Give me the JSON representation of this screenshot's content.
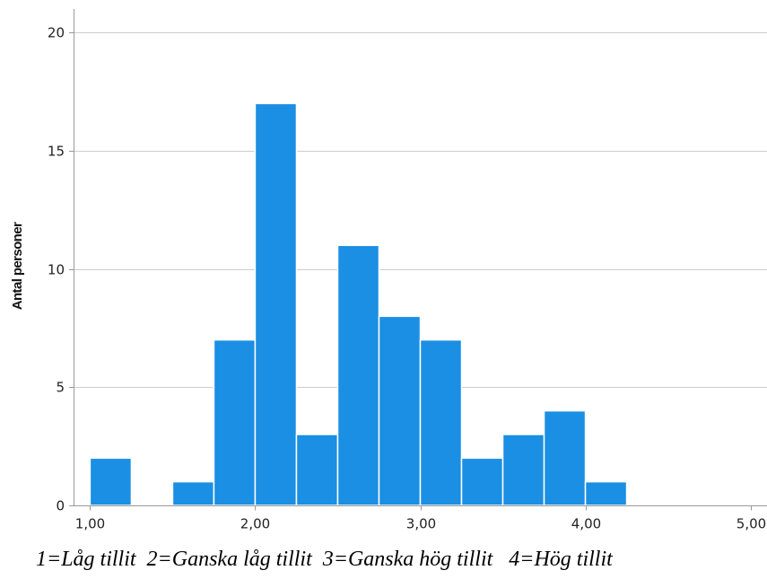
{
  "chart_data": {
    "type": "bar",
    "subtype": "histogram",
    "xlabel": "",
    "ylabel": "Antal personer",
    "bin_width": 0.25,
    "bins": [
      {
        "start": 1.0,
        "end": 1.25,
        "count": 2
      },
      {
        "start": 1.25,
        "end": 1.5,
        "count": 0
      },
      {
        "start": 1.5,
        "end": 1.75,
        "count": 1
      },
      {
        "start": 1.75,
        "end": 2.0,
        "count": 7
      },
      {
        "start": 2.0,
        "end": 2.25,
        "count": 17
      },
      {
        "start": 2.25,
        "end": 2.5,
        "count": 3
      },
      {
        "start": 2.5,
        "end": 2.75,
        "count": 11
      },
      {
        "start": 2.75,
        "end": 3.0,
        "count": 8
      },
      {
        "start": 3.0,
        "end": 3.25,
        "count": 7
      },
      {
        "start": 3.25,
        "end": 3.5,
        "count": 2
      },
      {
        "start": 3.5,
        "end": 3.75,
        "count": 3
      },
      {
        "start": 3.75,
        "end": 4.0,
        "count": 4
      },
      {
        "start": 4.0,
        "end": 4.25,
        "count": 1
      }
    ],
    "xlim": [
      0.9,
      5.1
    ],
    "ylim": [
      0,
      21
    ],
    "x_ticks": [
      1,
      2,
      3,
      4,
      5
    ],
    "x_tick_labels": [
      "1,00",
      "2,00",
      "3,00",
      "4,00",
      "5,00"
    ],
    "y_ticks": [
      0,
      5,
      10,
      15,
      20
    ],
    "y_tick_labels": [
      "0",
      "5",
      "10",
      "15",
      "20"
    ],
    "grid": "horizontal",
    "bar_color": "#1a8fe3",
    "bar_edge_color": "#ffffff",
    "grid_color": "#cccccc",
    "axis_color": "#999999"
  },
  "caption": "1=Låg tillit  2=Ganska låg tillit  3=Ganska hög tillit   4=Hög tillit"
}
